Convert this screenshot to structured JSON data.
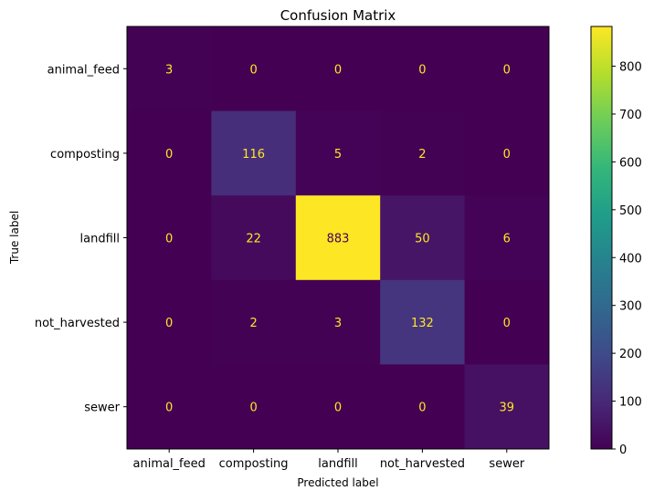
{
  "chart_data": {
    "type": "heatmap",
    "title": "Confusion Matrix",
    "xlabel": "Predicted label",
    "ylabel": "True label",
    "x_categories": [
      "animal_feed",
      "composting",
      "landfill",
      "not_harvested",
      "sewer"
    ],
    "y_categories": [
      "animal_feed",
      "composting",
      "landfill",
      "not_harvested",
      "sewer"
    ],
    "values": [
      [
        3,
        0,
        0,
        0,
        0
      ],
      [
        0,
        116,
        5,
        2,
        0
      ],
      [
        0,
        22,
        883,
        50,
        6
      ],
      [
        0,
        2,
        3,
        132,
        0
      ],
      [
        0,
        0,
        0,
        0,
        39
      ]
    ],
    "colormap": "viridis",
    "annotation_colors": {
      "on_dark": "#fde725",
      "on_bright": "#440154"
    },
    "colorbar": {
      "range": [
        0,
        883
      ],
      "ticks": [
        0,
        100,
        200,
        300,
        400,
        500,
        600,
        700,
        800
      ],
      "tick_labels": [
        "0",
        "100",
        "200",
        "300",
        "400",
        "500",
        "600",
        "700",
        "800"
      ]
    },
    "grid": false
  }
}
